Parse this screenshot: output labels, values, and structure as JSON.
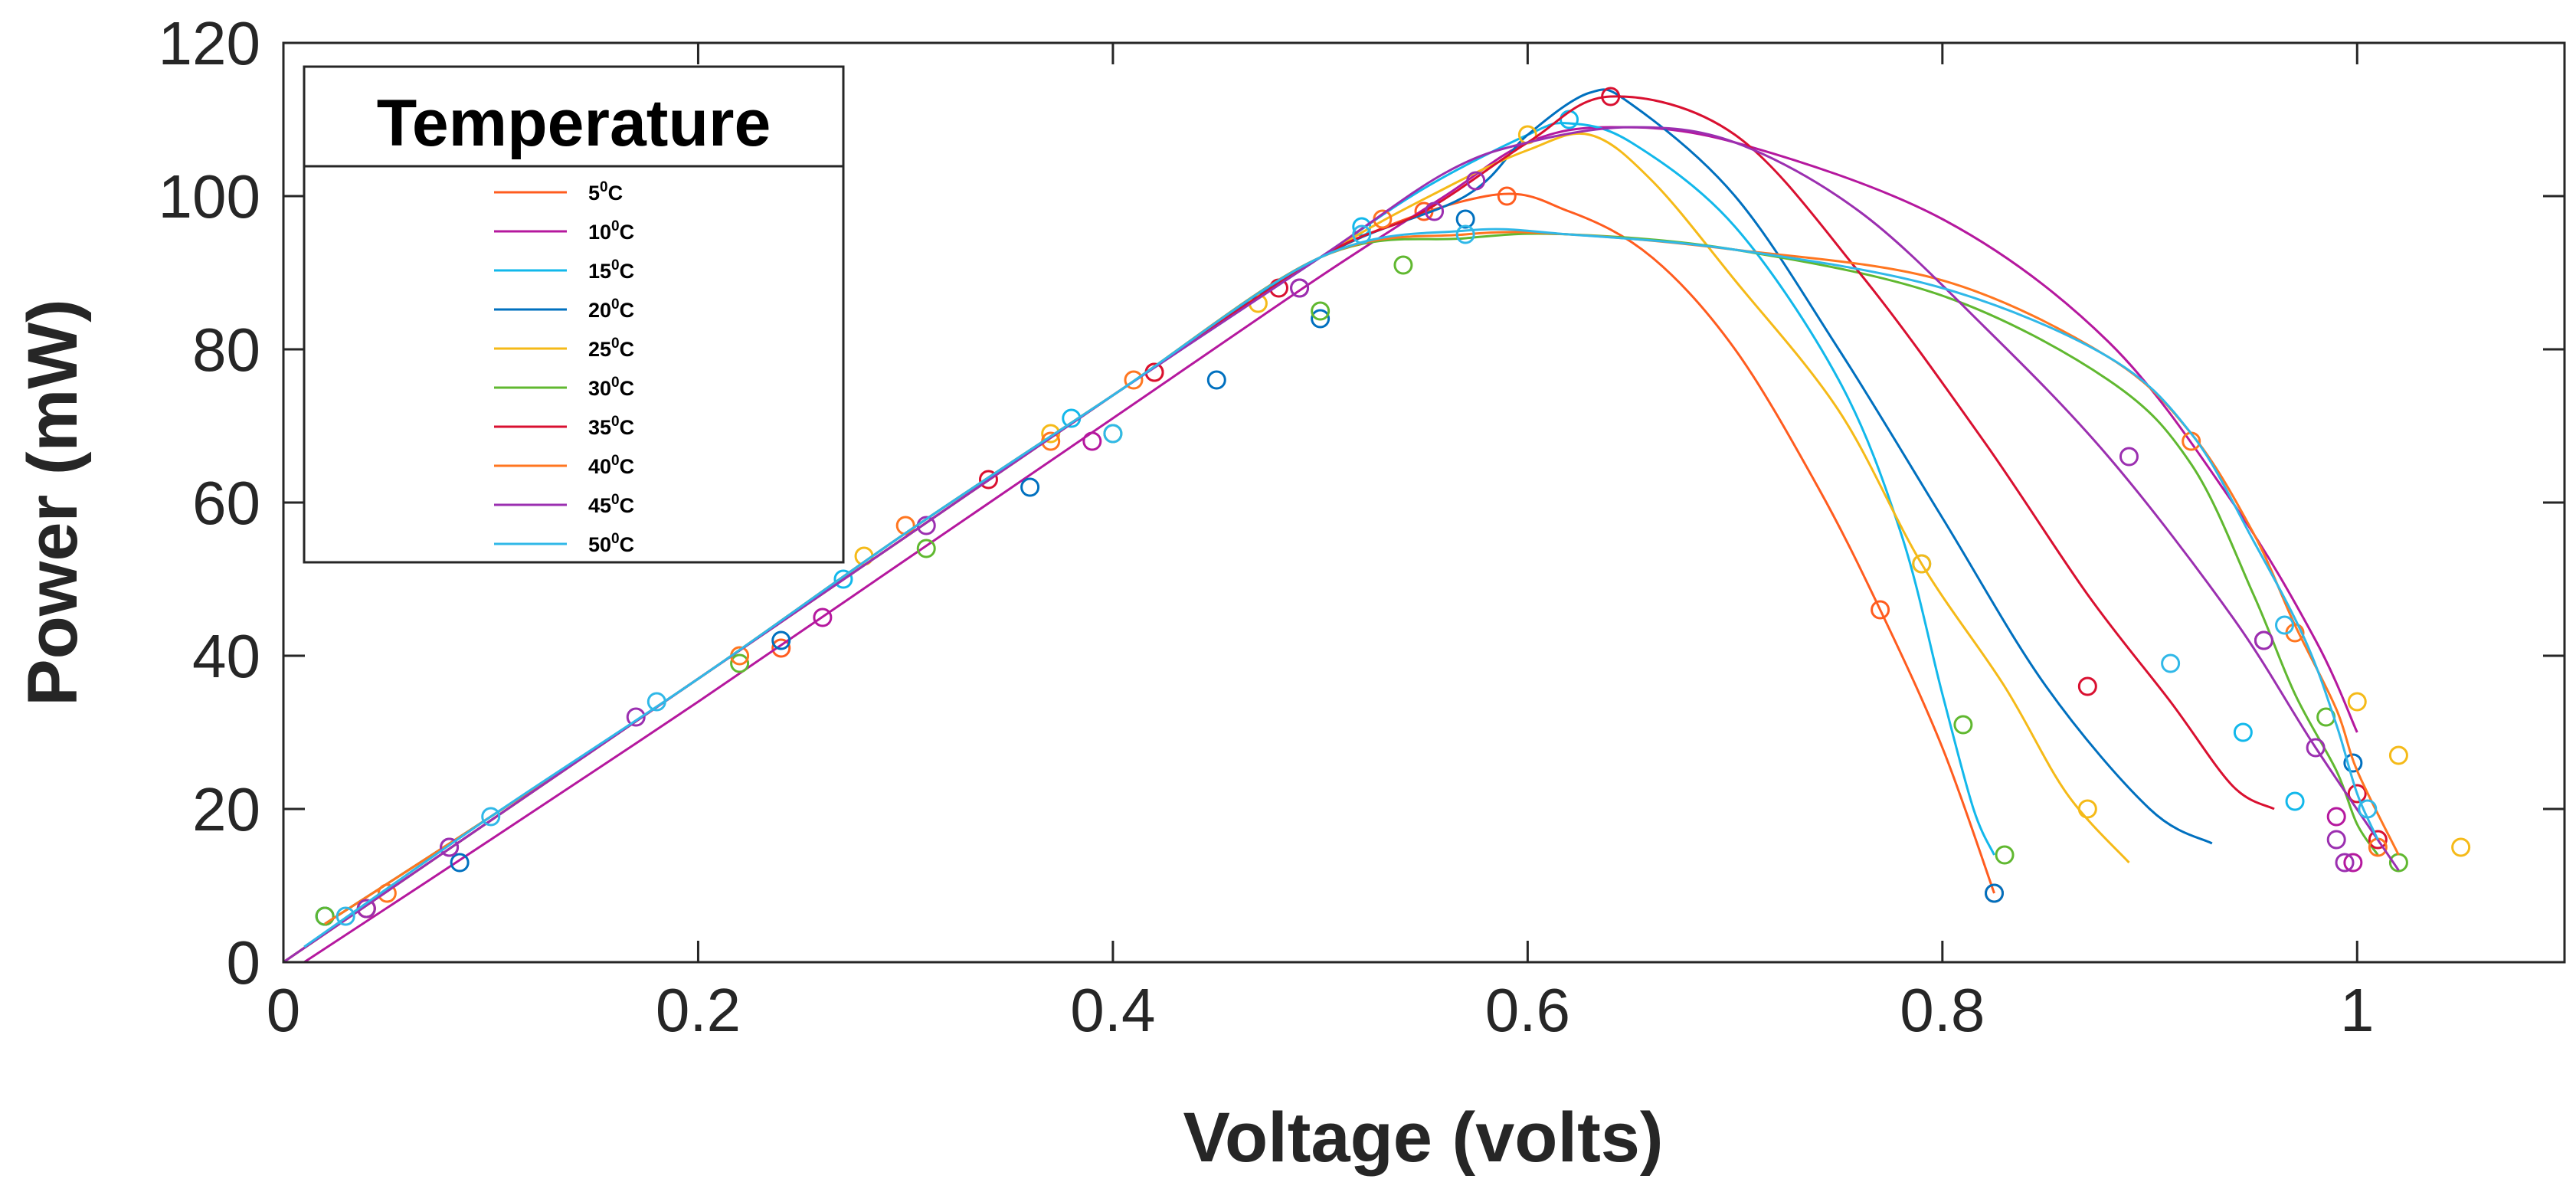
{
  "chart_data": {
    "type": "line",
    "title": "",
    "xlabel": "Voltage (volts)",
    "ylabel": "Power (mW)",
    "xlim": [
      0,
      1.1
    ],
    "ylim": [
      0,
      120
    ],
    "xticks": [
      0,
      0.2,
      0.4,
      0.6,
      0.8,
      1
    ],
    "xtick_labels": [
      "0",
      "0.2",
      "0.4",
      "0.6",
      "0.8",
      "1"
    ],
    "yticks": [
      0,
      20,
      40,
      60,
      80,
      100,
      120
    ],
    "ytick_labels": [
      "0",
      "20",
      "40",
      "60",
      "80",
      "100",
      "120"
    ],
    "legend": {
      "title": "Temperature",
      "placement": "top-left",
      "superscript": "0",
      "unit": "C"
    },
    "series": [
      {
        "name": "5",
        "color": "#FF5C1F",
        "x": [
          0,
          0.1,
          0.2,
          0.3,
          0.4,
          0.5,
          0.58,
          0.62,
          0.66,
          0.7,
          0.74,
          0.77,
          0.8,
          0.825
        ],
        "y": [
          0,
          18.5,
          37,
          55.5,
          74,
          92,
          100,
          98,
          92,
          80,
          62,
          46,
          28,
          9
        ],
        "markers_x": [
          0.04,
          0.24,
          0.42,
          0.55,
          0.59,
          0.77,
          0.825
        ],
        "markers_y": [
          7,
          41,
          77,
          98,
          100,
          46,
          9
        ]
      },
      {
        "name": "10",
        "color": "#B5189E",
        "x": [
          0.01,
          0.1,
          0.2,
          0.3,
          0.4,
          0.5,
          0.56,
          0.6,
          0.64,
          0.7,
          0.8,
          0.88,
          0.94,
          0.98,
          1.0
        ],
        "y": [
          0,
          16,
          34,
          52.5,
          71,
          89.5,
          100,
          107,
          109,
          107,
          97,
          81,
          60,
          42,
          30
        ],
        "markers_x": [
          0.04,
          0.08,
          0.26,
          0.39,
          0.49,
          0.955,
          0.99,
          0.998
        ],
        "markers_y": [
          7,
          15,
          45,
          68,
          88,
          42,
          19,
          13
        ]
      },
      {
        "name": "15",
        "color": "#12B8EB",
        "x": [
          0,
          0.1,
          0.2,
          0.3,
          0.4,
          0.5,
          0.55,
          0.6,
          0.62,
          0.65,
          0.7,
          0.75,
          0.78,
          0.8,
          0.815,
          0.825
        ],
        "y": [
          0,
          18.5,
          37,
          55.5,
          74,
          92,
          101,
          108,
          109.5,
          107,
          96,
          76,
          56,
          35,
          20,
          14
        ],
        "markers_x": [
          0.02,
          0.27,
          0.38,
          0.52,
          0.62,
          0.79,
          0.945,
          0.97
        ],
        "markers_y": [
          6,
          50,
          71,
          96,
          110,
          52,
          30,
          21
        ]
      },
      {
        "name": "20",
        "color": "#0070BF",
        "x": [
          0.02,
          0.1,
          0.2,
          0.3,
          0.4,
          0.5,
          0.57,
          0.6,
          0.63,
          0.65,
          0.7,
          0.75,
          0.8,
          0.85,
          0.9,
          0.93
        ],
        "y": [
          5,
          19,
          37,
          56,
          74,
          92,
          100,
          108,
          113.5,
          112,
          100,
          80,
          58,
          36,
          20,
          15.5
        ],
        "markers_x": [
          0.02,
          0.085,
          0.24,
          0.36,
          0.45,
          0.5,
          0.57,
          0.825,
          0.998
        ],
        "markers_y": [
          6,
          13,
          42,
          62,
          76,
          84,
          97,
          9,
          26
        ]
      },
      {
        "name": "25",
        "color": "#F5BA18",
        "x": [
          0,
          0.1,
          0.2,
          0.3,
          0.4,
          0.5,
          0.56,
          0.6,
          0.63,
          0.66,
          0.7,
          0.75,
          0.79,
          0.83,
          0.86,
          0.89
        ],
        "y": [
          0,
          18.5,
          37,
          55.5,
          74,
          92,
          101,
          106,
          108,
          102,
          89,
          72,
          52,
          36,
          22,
          13
        ],
        "markers_x": [
          0.04,
          0.28,
          0.37,
          0.47,
          0.6,
          0.79,
          0.87,
          1.0,
          1.02,
          1.05
        ],
        "markers_y": [
          7,
          53,
          69,
          86,
          108,
          52,
          20,
          34,
          27,
          15
        ]
      },
      {
        "name": "30",
        "color": "#60B830",
        "x": [
          0.02,
          0.1,
          0.2,
          0.3,
          0.4,
          0.5,
          0.57,
          0.62,
          0.7,
          0.8,
          0.88,
          0.92,
          0.95,
          0.97,
          0.99,
          1.0,
          1.01
        ],
        "y": [
          5,
          19,
          37,
          56,
          74,
          92,
          94.5,
          95,
          93,
          87,
          76,
          65,
          48,
          35,
          25,
          18,
          14
        ],
        "markers_x": [
          0.02,
          0.22,
          0.31,
          0.4,
          0.5,
          0.54,
          0.81,
          0.83,
          0.985,
          1.02
        ],
        "markers_y": [
          6,
          39,
          54,
          69,
          85,
          91,
          31,
          14,
          32,
          13
        ]
      },
      {
        "name": "35",
        "color": "#D91030",
        "x": [
          0,
          0.1,
          0.2,
          0.3,
          0.4,
          0.5,
          0.55,
          0.6,
          0.64,
          0.7,
          0.76,
          0.82,
          0.87,
          0.91,
          0.94,
          0.96
        ],
        "y": [
          0,
          18.5,
          37,
          55.5,
          74,
          92,
          98,
          107,
          113,
          108,
          90,
          68,
          48,
          34,
          23,
          20
        ],
        "markers_x": [
          0.04,
          0.34,
          0.42,
          0.48,
          0.64,
          0.87,
          1.0,
          1.01
        ],
        "markers_y": [
          7,
          63,
          77,
          88,
          113,
          36,
          22,
          16
        ]
      },
      {
        "name": "40",
        "color": "#FF7620",
        "x": [
          0.02,
          0.1,
          0.2,
          0.3,
          0.4,
          0.5,
          0.57,
          0.62,
          0.7,
          0.8,
          0.88,
          0.92,
          0.95,
          0.97,
          0.99,
          1.0,
          1.02
        ],
        "y": [
          5,
          19,
          37,
          56,
          74,
          92,
          95,
          95,
          93,
          89,
          79,
          69,
          56,
          44,
          33,
          25,
          14
        ],
        "markers_x": [
          0.05,
          0.22,
          0.3,
          0.37,
          0.41,
          0.53,
          0.92,
          0.97,
          1.01
        ],
        "markers_y": [
          9,
          40,
          57,
          68,
          76,
          97,
          68,
          43,
          15
        ]
      },
      {
        "name": "45",
        "color": "#9B2FB0",
        "x": [
          0,
          0.1,
          0.2,
          0.3,
          0.4,
          0.5,
          0.56,
          0.6,
          0.65,
          0.7,
          0.76,
          0.82,
          0.88,
          0.94,
          0.98,
          1.02
        ],
        "y": [
          0,
          18.5,
          37,
          55.5,
          74,
          92,
          103,
          107,
          109,
          107,
          98,
          83,
          66,
          45,
          28,
          12
        ],
        "markers_x": [
          0.04,
          0.08,
          0.17,
          0.31,
          0.49,
          0.555,
          0.575,
          0.89,
          0.955,
          0.98,
          0.99,
          0.994
        ],
        "markers_y": [
          7,
          15,
          32,
          57,
          88,
          98,
          102,
          66,
          42,
          28,
          16,
          13
        ]
      },
      {
        "name": "50",
        "color": "#30B8E8",
        "x": [
          0.01,
          0.1,
          0.2,
          0.3,
          0.4,
          0.5,
          0.57,
          0.62,
          0.7,
          0.8,
          0.88,
          0.92,
          0.95,
          0.975,
          0.99,
          1.0,
          1.01
        ],
        "y": [
          2,
          19,
          37,
          56,
          74,
          92,
          95.5,
          95,
          93,
          88,
          79,
          69,
          55,
          42,
          31,
          22,
          16
        ],
        "markers_x": [
          0.03,
          0.1,
          0.18,
          0.4,
          0.52,
          0.57,
          0.91,
          0.965,
          1.005
        ],
        "markers_y": [
          6,
          19,
          34,
          69,
          95,
          95,
          39,
          44,
          20
        ]
      }
    ]
  }
}
